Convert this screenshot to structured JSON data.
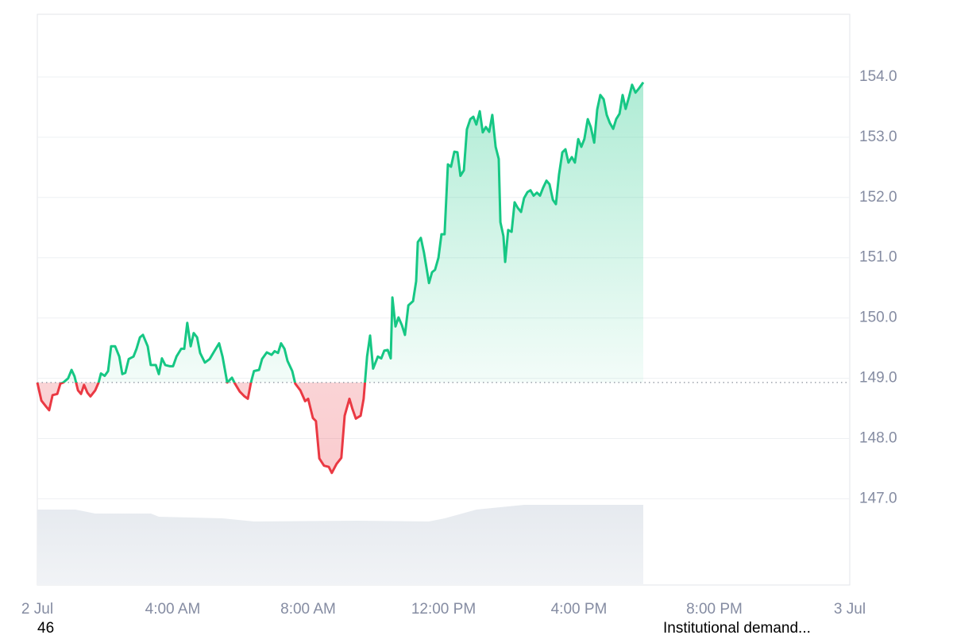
{
  "chart_data": {
    "type": "line",
    "x": [
      0.0,
      0.12,
      0.26,
      0.35,
      0.45,
      0.59,
      0.68,
      0.77,
      0.91,
      1.01,
      1.1,
      1.2,
      1.29,
      1.38,
      1.48,
      1.57,
      1.71,
      1.81,
      1.88,
      1.99,
      2.09,
      2.18,
      2.3,
      2.42,
      2.51,
      2.6,
      2.7,
      2.84,
      2.93,
      3.03,
      3.12,
      3.26,
      3.35,
      3.5,
      3.59,
      3.68,
      3.78,
      3.92,
      4.01,
      4.11,
      4.25,
      4.34,
      4.43,
      4.53,
      4.62,
      4.72,
      4.81,
      4.95,
      5.09,
      5.23,
      5.37,
      5.47,
      5.61,
      5.75,
      5.84,
      5.98,
      6.12,
      6.22,
      6.31,
      6.4,
      6.55,
      6.64,
      6.78,
      6.92,
      7.01,
      7.11,
      7.2,
      7.3,
      7.39,
      7.53,
      7.62,
      7.77,
      7.91,
      8.0,
      8.14,
      8.23,
      8.33,
      8.47,
      8.61,
      8.7,
      8.84,
      8.98,
      9.08,
      9.22,
      9.31,
      9.41,
      9.55,
      9.64,
      9.74,
      9.83,
      9.92,
      10.06,
      10.16,
      10.25,
      10.35,
      10.44,
      10.49,
      10.58,
      10.67,
      10.77,
      10.86,
      10.96,
      11.1,
      11.19,
      11.24,
      11.33,
      11.42,
      11.57,
      11.66,
      11.75,
      11.85,
      11.94,
      12.03,
      12.13,
      12.22,
      12.32,
      12.41,
      12.5,
      12.6,
      12.69,
      12.79,
      12.88,
      12.97,
      13.07,
      13.16,
      13.25,
      13.35,
      13.44,
      13.54,
      13.63,
      13.68,
      13.77,
      13.82,
      13.91,
      14.01,
      14.1,
      14.19,
      14.29,
      14.38,
      14.48,
      14.57,
      14.66,
      14.76,
      14.85,
      14.94,
      15.04,
      15.13,
      15.23,
      15.32,
      15.41,
      15.51,
      15.6,
      15.69,
      15.79,
      15.88,
      15.98,
      16.07,
      16.16,
      16.26,
      16.35,
      16.45,
      16.54,
      16.63,
      16.73,
      16.82,
      16.91,
      17.01,
      17.1,
      17.2,
      17.29,
      17.38,
      17.48,
      17.57,
      17.67,
      17.76,
      17.9
    ],
    "series": [
      {
        "values": [
          148.93,
          148.63,
          148.53,
          148.47,
          148.72,
          148.74,
          148.91,
          148.93,
          149.0,
          149.14,
          149.03,
          148.8,
          148.74,
          148.89,
          148.76,
          148.7,
          148.8,
          148.93,
          149.08,
          149.04,
          149.12,
          149.53,
          149.53,
          149.36,
          149.07,
          149.09,
          149.32,
          149.36,
          149.49,
          149.68,
          149.72,
          149.53,
          149.22,
          149.22,
          149.07,
          149.33,
          149.22,
          149.2,
          149.2,
          149.36,
          149.49,
          149.49,
          149.92,
          149.53,
          149.75,
          149.68,
          149.42,
          149.26,
          149.32,
          149.45,
          149.58,
          149.36,
          148.93,
          149.01,
          148.91,
          148.78,
          148.7,
          148.66,
          148.93,
          149.12,
          149.14,
          149.32,
          149.43,
          149.39,
          149.45,
          149.42,
          149.58,
          149.49,
          149.29,
          149.12,
          148.91,
          148.8,
          148.62,
          148.66,
          148.34,
          148.29,
          147.67,
          147.55,
          147.53,
          147.43,
          147.58,
          147.68,
          148.38,
          148.66,
          148.49,
          148.33,
          148.38,
          148.66,
          149.36,
          149.71,
          149.16,
          149.36,
          149.33,
          149.46,
          149.47,
          149.33,
          150.34,
          149.86,
          150.01,
          149.88,
          149.72,
          150.21,
          150.28,
          150.61,
          151.26,
          151.33,
          151.09,
          150.58,
          150.76,
          150.8,
          151.0,
          151.39,
          151.39,
          152.55,
          152.51,
          152.76,
          152.75,
          152.36,
          152.45,
          153.13,
          153.3,
          153.34,
          153.21,
          153.43,
          153.08,
          153.17,
          153.09,
          153.37,
          152.84,
          152.64,
          151.59,
          151.36,
          150.93,
          151.46,
          151.43,
          151.92,
          151.83,
          151.76,
          151.99,
          152.09,
          152.12,
          152.03,
          152.08,
          152.03,
          152.16,
          152.28,
          152.22,
          151.96,
          151.89,
          152.38,
          152.75,
          152.8,
          152.58,
          152.67,
          152.58,
          152.97,
          152.84,
          152.97,
          153.3,
          153.17,
          152.91,
          153.46,
          153.7,
          153.63,
          153.37,
          153.24,
          153.14,
          153.3,
          153.39,
          153.7,
          153.47,
          153.67,
          153.87,
          153.74,
          153.8,
          153.91
        ]
      }
    ],
    "baseline": 148.93,
    "up_color": "#16c784",
    "down_color": "#ea3943",
    "xlim": [
      0,
      24
    ],
    "xticks": [
      {
        "value": 0,
        "label": "2 Jul"
      },
      {
        "value": 4,
        "label": "4:00 AM"
      },
      {
        "value": 8,
        "label": "8:00 AM"
      },
      {
        "value": 12,
        "label": "12:00 PM"
      },
      {
        "value": 16,
        "label": "4:00 PM"
      },
      {
        "value": 20,
        "label": "8:00 PM"
      },
      {
        "value": 24,
        "label": "3 Jul"
      }
    ],
    "ylim": [
      145.57,
      155.04
    ],
    "yticks": [
      {
        "value": 147,
        "label": "147.0"
      },
      {
        "value": 148,
        "label": "148.0"
      },
      {
        "value": 149,
        "label": "149.0"
      },
      {
        "value": 150,
        "label": "150.0"
      },
      {
        "value": 151,
        "label": "151.0"
      },
      {
        "value": 152,
        "label": "152.0"
      },
      {
        "value": 153,
        "label": "153.0"
      },
      {
        "value": 154,
        "label": "154.0"
      }
    ],
    "grid": true,
    "annotations": [
      "46",
      "Institutional demand..."
    ]
  }
}
